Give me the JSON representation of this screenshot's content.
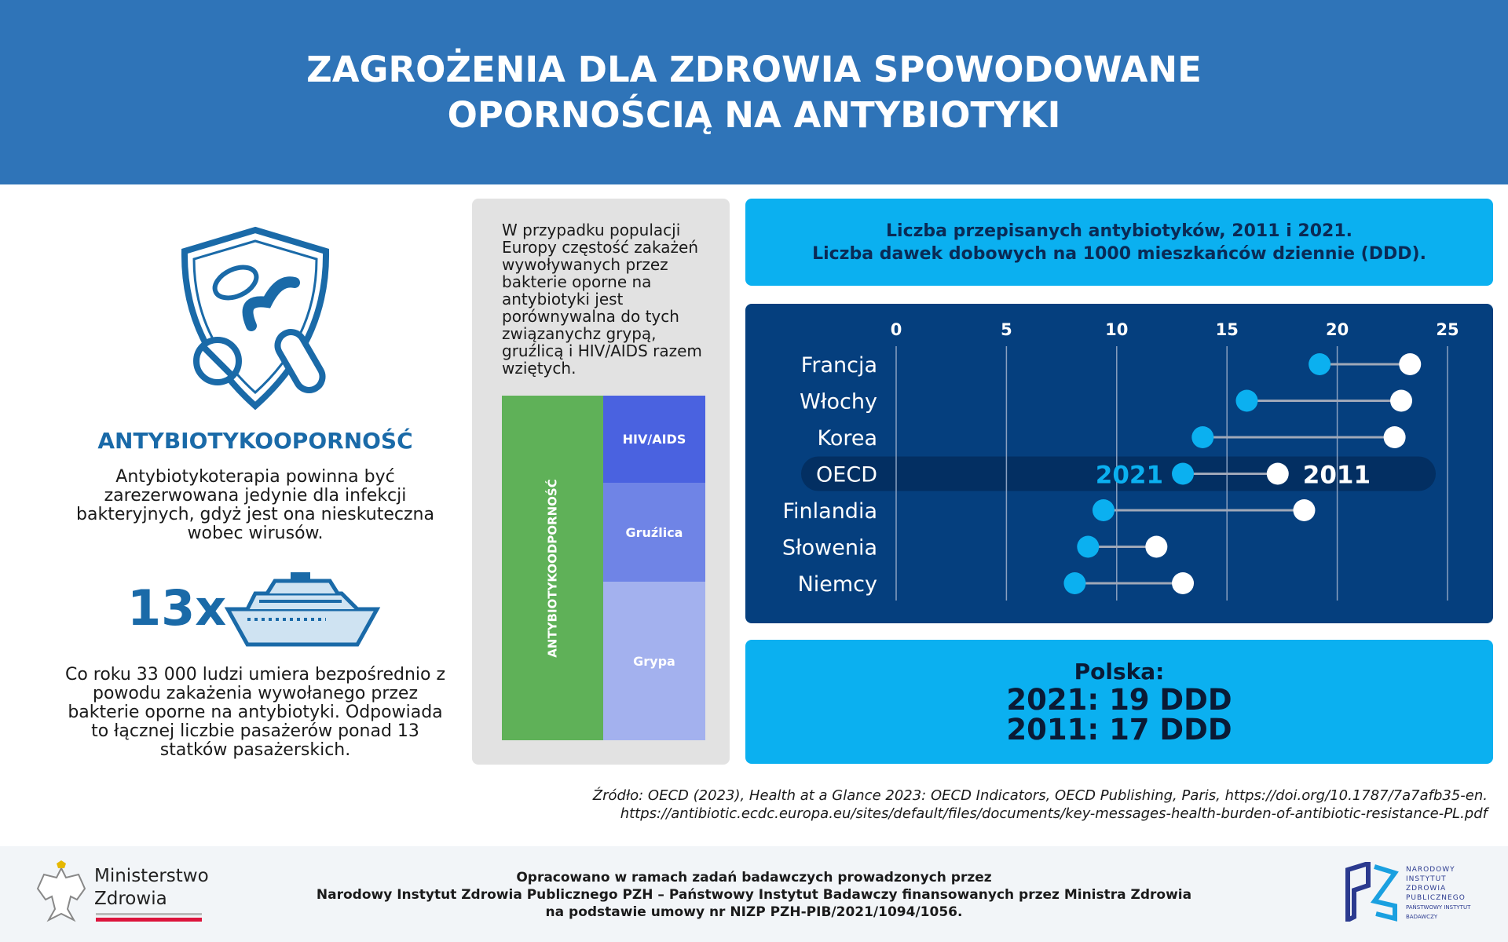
{
  "header": {
    "title_line1": "ZAGROŻENIA DLA ZDROWIA SPOWODOWANE",
    "title_line2": "OPORNOŚCIĄ NA ANTYBIOTYKI"
  },
  "left": {
    "heading": "ANTYBIOTYKOOPORNOŚĆ",
    "paragraph1": "Antybiotykoterapia powinna być zarezerwowana jedynie dla infekcji bakteryjnych, gdyż jest ona nieskuteczna wobec wirusów.",
    "multiplier": "13x",
    "paragraph2": "Co roku 33 000 ludzi umiera bezpośrednio z powodu zakażenia wywołanego przez bakterie oporne na antybiotyki. Odpowiada to łącznej liczbie pasażerów ponad 13 statków pasażerskich."
  },
  "comparison": {
    "text": "W przypadku populacji Europy częstość zakażeń wywoływanych przez bakterie oporne na antybiotyki jest porównywalna do tych związanychz grypą, gruźlicą i HIV/AIDS razem wziętych.",
    "treemap": {
      "left_label": "ANTYBIOTYKOODPORNOŚĆ",
      "items": [
        "HIV/AIDS",
        "Gruźlica",
        "Grypa"
      ]
    },
    "colors": {
      "green": "#5fb158",
      "hiv": "#4a62e0",
      "gruzlica": "#6f84e6",
      "grypa": "#a3b1ee"
    }
  },
  "chart_title": {
    "line1": "Liczba przepisanych antybiotyków, 2011 i 2021.",
    "line2": "Liczba dawek dobowych na 1000 mieszkańców dziennie (DDD)."
  },
  "chart_data": {
    "type": "dumbbell",
    "xlim": [
      0,
      25
    ],
    "ticks": [
      "0",
      "5",
      "10",
      "15",
      "20",
      "25"
    ],
    "tick_values": [
      0,
      5,
      10,
      15,
      20,
      25
    ],
    "categories": [
      "Francja",
      "Włochy",
      "Korea",
      "OECD",
      "Finlandia",
      "Słowenia",
      "Niemcy"
    ],
    "series": [
      {
        "name": "2021",
        "color": "#0bb0f0",
        "values": [
          19.2,
          15.9,
          13.9,
          13.0,
          9.4,
          8.7,
          8.1
        ]
      },
      {
        "name": "2011",
        "color": "#ffffff",
        "values": [
          23.3,
          22.9,
          22.6,
          17.3,
          18.5,
          11.8,
          13.0
        ]
      }
    ],
    "highlight": "OECD",
    "highlight_labels": {
      "left": "2021",
      "right": "2011"
    }
  },
  "polska": {
    "label": "Polska:",
    "line2021": "2021: 19 DDD",
    "line2011": "2011: 17 DDD"
  },
  "source": {
    "line1": "Źródło: OECD (2023), Health at a Glance 2023: OECD Indicators, OECD Publishing, Paris, https://doi.org/10.1787/7a7afb35-en.",
    "line2": "https://antibiotic.ecdc.europa.eu/sites/default/files/documents/key-messages-health-burden-of-antibiotic-resistance-PL.pdf"
  },
  "footer": {
    "ministry_line1": "Ministerstwo",
    "ministry_line2": "Zdrowia",
    "text_line1": "Opracowano w ramach zadań badawczych prowadzonych przez",
    "text_line2": "Narodowy Instytut Zdrowia Publicznego PZH – Państwowy Instytut Badawczy finansowanych przez Ministra Zdrowia",
    "text_line3": "na podstawie umowy nr NIZP PZH-PIB/2021/1094/1056.",
    "pzh_lines": [
      "NARODOWY",
      "INSTYTUT",
      "ZDROWIA",
      "PUBLICZNEGO",
      "PAŃSTWOWY INSTYTUT",
      "BADAWCZY"
    ]
  }
}
